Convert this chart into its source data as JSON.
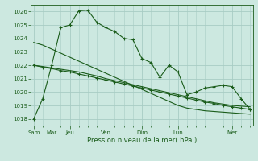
{
  "bg_color": "#cce8e0",
  "grid_color": "#a8ccc4",
  "line_color": "#1a5c1a",
  "title": "Pression niveau de la mer( hPa )",
  "ylim": [
    1017.5,
    1026.5
  ],
  "yticks": [
    1018,
    1019,
    1020,
    1021,
    1022,
    1023,
    1024,
    1025,
    1026
  ],
  "label_ticks": [
    0,
    2,
    4,
    8,
    12,
    16,
    22
  ],
  "label_texts": [
    "Sam",
    "Mar",
    "Jeu",
    "Ven",
    "Dim",
    "Lun",
    "Mer"
  ],
  "series1": [
    1018.0,
    1019.5,
    1022.0,
    1024.8,
    1025.0,
    1026.05,
    1026.1,
    1025.2,
    1024.8,
    1024.5,
    1024.0,
    1023.9,
    1022.5,
    1022.2,
    1021.1,
    1022.0,
    1021.5,
    1019.8,
    1020.0,
    1020.3,
    1020.4,
    1020.5,
    1020.4,
    1019.5,
    1018.7
  ],
  "series2": [
    1022.0,
    1021.85,
    1021.75,
    1021.6,
    1021.5,
    1021.35,
    1021.2,
    1021.05,
    1020.9,
    1020.75,
    1020.6,
    1020.45,
    1020.3,
    1020.15,
    1020.0,
    1019.85,
    1019.7,
    1019.55,
    1019.4,
    1019.25,
    1019.15,
    1019.0,
    1018.9,
    1018.8,
    1018.7
  ],
  "series3": [
    1022.0,
    1021.9,
    1021.8,
    1021.7,
    1021.6,
    1021.5,
    1021.35,
    1021.2,
    1021.0,
    1020.85,
    1020.7,
    1020.55,
    1020.4,
    1020.25,
    1020.1,
    1019.95,
    1019.8,
    1019.65,
    1019.5,
    1019.35,
    1019.2,
    1019.1,
    1019.0,
    1018.95,
    1018.9
  ],
  "series4": [
    1023.7,
    1023.5,
    1023.2,
    1022.9,
    1022.6,
    1022.3,
    1022.0,
    1021.7,
    1021.4,
    1021.1,
    1020.8,
    1020.5,
    1020.2,
    1019.9,
    1019.6,
    1019.3,
    1019.0,
    1018.8,
    1018.7,
    1018.6,
    1018.55,
    1018.5,
    1018.45,
    1018.4,
    1018.35
  ],
  "n_points": 25,
  "xlim": [
    -0.3,
    24.3
  ]
}
